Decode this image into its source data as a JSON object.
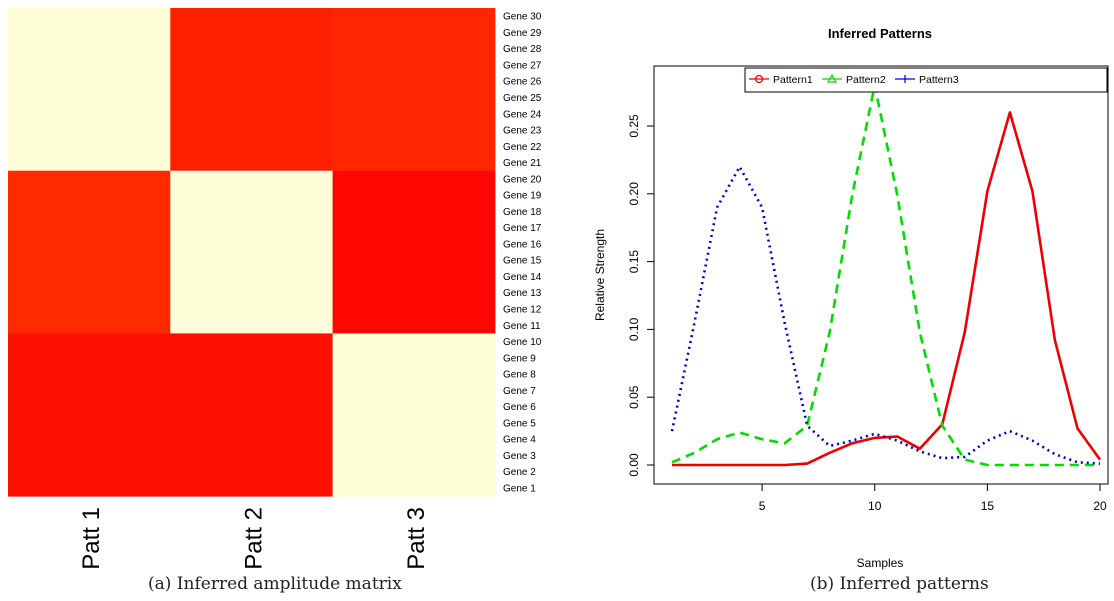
{
  "chart_data": [
    {
      "type": "heatmap",
      "columns": [
        "Patt 1",
        "Patt 2",
        "Patt 3"
      ],
      "rows": [
        "Gene 30",
        "Gene 29",
        "Gene 28",
        "Gene 27",
        "Gene 26",
        "Gene 25",
        "Gene 24",
        "Gene 23",
        "Gene 22",
        "Gene 21",
        "Gene 20",
        "Gene 19",
        "Gene 18",
        "Gene 17",
        "Gene 16",
        "Gene 15",
        "Gene 14",
        "Gene 13",
        "Gene 12",
        "Gene 11",
        "Gene 10",
        "Gene 9",
        "Gene 8",
        "Gene 7",
        "Gene 6",
        "Gene 5",
        "Gene 4",
        "Gene 3",
        "Gene 2",
        "Gene 1"
      ],
      "blocks": [
        {
          "rows": "Gene 21-30",
          "values": [
            "low",
            "high",
            "mid-high"
          ],
          "colors": [
            "#fefed8",
            "#ff2000",
            "#ff2600"
          ]
        },
        {
          "rows": "Gene 11-20",
          "values": [
            "mid-high",
            "low",
            "high"
          ],
          "colors": [
            "#ff2a00",
            "#fefed8",
            "#ff0600"
          ]
        },
        {
          "rows": "Gene 1-10",
          "values": [
            "high",
            "high",
            "low"
          ],
          "colors": [
            "#ff1000",
            "#ff1000",
            "#fefed8"
          ]
        }
      ]
    },
    {
      "type": "line",
      "title": "Inferred Patterns",
      "xlabel": "Samples",
      "ylabel": "Relative Strength",
      "xlim": [
        1,
        20
      ],
      "ylim": [
        0,
        0.28
      ],
      "xticks": [
        5,
        10,
        15,
        20
      ],
      "yticks": [
        "0.00",
        "0.05",
        "0.10",
        "0.15",
        "0.20",
        "0.25"
      ],
      "legend_position": "top",
      "x": [
        1,
        2,
        3,
        4,
        5,
        6,
        7,
        8,
        9,
        10,
        11,
        12,
        13,
        14,
        15,
        16,
        17,
        18,
        19,
        20
      ],
      "series": [
        {
          "name": "Pattern1",
          "color": "#ee0000",
          "style": "solid",
          "marker": "circle",
          "values": [
            0.0,
            0.0,
            0.0,
            0.0,
            0.0,
            0.0,
            0.001,
            0.009,
            0.016,
            0.02,
            0.021,
            0.012,
            0.03,
            0.098,
            0.202,
            0.26,
            0.202,
            0.092,
            0.027,
            0.004
          ]
        },
        {
          "name": "Pattern2",
          "color": "#00dd00",
          "style": "dashed",
          "marker": "triangle",
          "values": [
            0.002,
            0.009,
            0.019,
            0.024,
            0.019,
            0.016,
            0.029,
            0.098,
            0.199,
            0.28,
            0.199,
            0.098,
            0.029,
            0.004,
            0.0,
            0.0,
            0.0,
            0.0,
            0.0,
            0.0
          ]
        },
        {
          "name": "Pattern3",
          "color": "#0000dd",
          "style": "dotted",
          "marker": "plus",
          "values": [
            0.025,
            0.105,
            0.19,
            0.22,
            0.19,
            0.105,
            0.029,
            0.014,
            0.018,
            0.023,
            0.018,
            0.01,
            0.005,
            0.006,
            0.018,
            0.025,
            0.018,
            0.008,
            0.002,
            0.001
          ]
        }
      ]
    }
  ],
  "captions": {
    "a": "(a) Inferred amplitude matrix",
    "b": "(b) Inferred patterns"
  }
}
